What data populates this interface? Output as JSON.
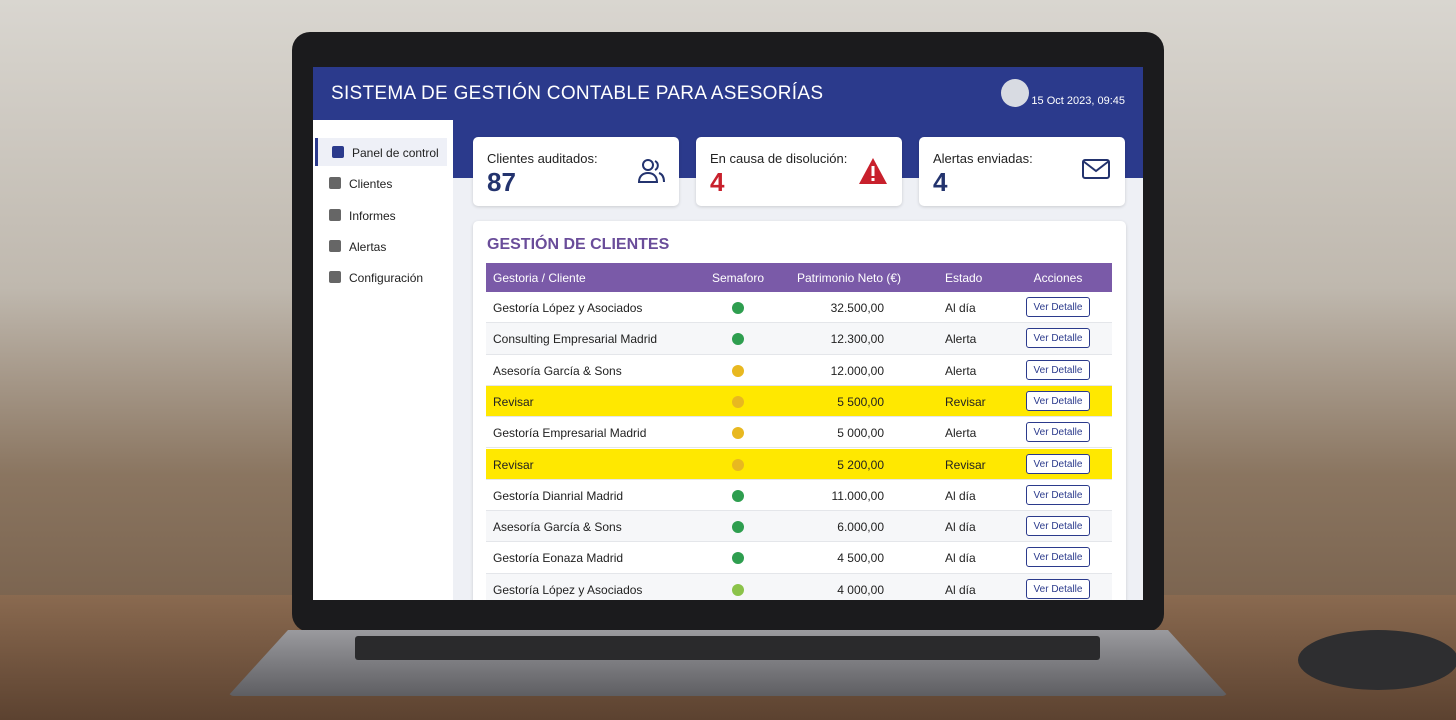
{
  "header": {
    "title": "SISTEMA DE GESTIÓN CONTABLE PARA ASESORÍAS",
    "datetime": "15 Oct 2023, 09:45"
  },
  "sidebar": [
    {
      "label": "Panel de control",
      "active": true
    },
    {
      "label": "Clientes",
      "active": false
    },
    {
      "label": "Informes",
      "active": false
    },
    {
      "label": "Alertas",
      "active": false
    },
    {
      "label": "Configuración",
      "active": false
    }
  ],
  "cards": [
    {
      "label": "Clientes auditados:",
      "value": 87,
      "value_color": "#23336e"
    },
    {
      "label": "En causa de disolución:",
      "value": 4,
      "value_color": "#c8202c"
    },
    {
      "label": "Alertas enviadas:",
      "value": 4,
      "value_color": "#23336e"
    }
  ],
  "table": {
    "title": "GESTIÓN DE CLIENTES",
    "columns": [
      "Gestoria / Cliente",
      "Semaforo",
      "Patrimonio Neto (€)",
      "Estado",
      "Acciones"
    ],
    "action_label": "Ver Detalle",
    "rows": [
      {
        "client": "Gestoría López y Asociados",
        "semaforo": "#2e9e4f",
        "patrimonio": "32.500,00",
        "estado": "Al día",
        "highlight": false
      },
      {
        "client": "Consulting Empresarial Madrid",
        "semaforo": "#2e9e4f",
        "patrimonio": "12.300,00",
        "estado": "Alerta",
        "highlight": false
      },
      {
        "client": "Asesoría García & Sons",
        "semaforo": "#e8b820",
        "patrimonio": "12.000,00",
        "estado": "Alerta",
        "highlight": false
      },
      {
        "client": "Revisar",
        "semaforo": "#e8b820",
        "patrimonio": "5 500,00",
        "estado": "Revisar",
        "highlight": true
      },
      {
        "client": "Gestoría Empresarial Madrid",
        "semaforo": "#e8b820",
        "patrimonio": "5 000,00",
        "estado": "Alerta",
        "highlight": false
      },
      {
        "client": "Revisar",
        "semaforo": "#e8b820",
        "patrimonio": "5 200,00",
        "estado": "Revisar",
        "highlight": true
      },
      {
        "client": "Gestoría Dianrial Madrid",
        "semaforo": "#2e9e4f",
        "patrimonio": "11.000,00",
        "estado": "Al día",
        "highlight": false
      },
      {
        "client": "Asesoría García & Sons",
        "semaforo": "#2e9e4f",
        "patrimonio": "6.000,00",
        "estado": "Al día",
        "highlight": false
      },
      {
        "client": "Gestoría Eonaza Madrid",
        "semaforo": "#2e9e4f",
        "patrimonio": "4 500,00",
        "estado": "Al día",
        "highlight": false
      },
      {
        "client": "Gestoría López y Asociados",
        "semaforo": "#8bc34a",
        "patrimonio": "4 000,00",
        "estado": "Al día",
        "highlight": false
      }
    ]
  }
}
